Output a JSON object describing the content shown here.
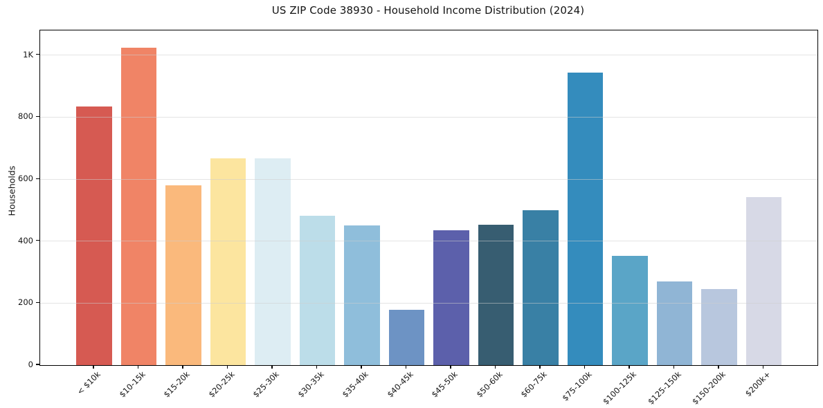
{
  "chart_data": {
    "type": "bar",
    "title": "US ZIP Code 38930 - Household Income Distribution (2024)",
    "xlabel": "",
    "ylabel": "Households",
    "categories": [
      "< $10k",
      "$10-15k",
      "$15-20k",
      "$20-25k",
      "$25-30k",
      "$30-35k",
      "$35-40k",
      "$40-45k",
      "$45-50k",
      "$50-60k",
      "$60-75k",
      "$75-100k",
      "$100-125k",
      "$125-150k",
      "$150-200k",
      "$200k+"
    ],
    "values": [
      835,
      1025,
      580,
      668,
      668,
      481,
      451,
      178,
      436,
      452,
      500,
      945,
      352,
      270,
      245,
      542
    ],
    "bar_colors": [
      "#d65a52",
      "#f08466",
      "#fab97c",
      "#fce59f",
      "#ddedf3",
      "#bcdde9",
      "#8fbedb",
      "#6d93c4",
      "#5c60ab",
      "#375d71",
      "#3980a5",
      "#348cbd",
      "#5aa5c7",
      "#90b5d5",
      "#b8c7de",
      "#d7d9e6"
    ],
    "ylim": [
      0,
      1080
    ],
    "yticks": [
      {
        "value": 0,
        "label": "0"
      },
      {
        "value": 200,
        "label": "200"
      },
      {
        "value": 400,
        "label": "400"
      },
      {
        "value": 600,
        "label": "600"
      },
      {
        "value": 800,
        "label": "800"
      },
      {
        "value": 1000,
        "label": "1K"
      }
    ],
    "grid": "horizontal",
    "legend": null
  },
  "colors": {
    "background": "#ffffff",
    "spine": "#000000",
    "grid": "#e6e6e6",
    "text": "#141414"
  }
}
